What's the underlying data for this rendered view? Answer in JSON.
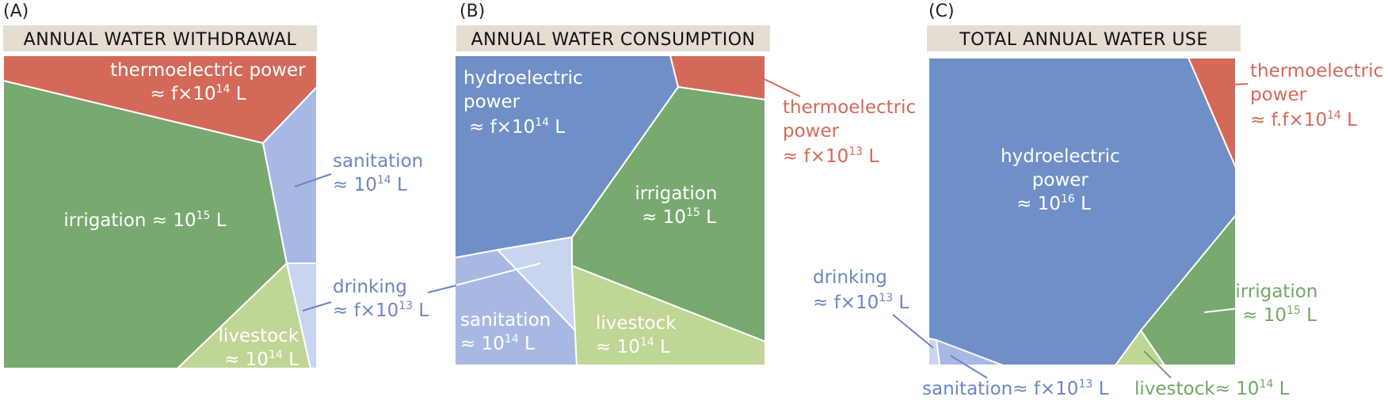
{
  "colors": {
    "thermoelectric": "#d4695a",
    "irrigation": "#78a96f",
    "sanitation": "#a7b9e3",
    "drinking": "#c9d5ef",
    "livestock": "#bfd694",
    "hydroelectric": "#6f8fc7",
    "title_bg": "#e5ddd2",
    "label_blue": "#6b86c4",
    "label_red": "#d4695a",
    "label_green": "#72a765"
  },
  "panels": [
    {
      "letter": "(A)",
      "title": "ANNUAL WATER WITHDRAWAL",
      "labels": {
        "thermo_line1": "thermoelectric power",
        "thermo_line2_pre": "≈ f×10",
        "thermo_line2_exp": "14",
        "thermo_line2_post": " L",
        "irrigation_pre": "irrigation ≈ 10",
        "irrigation_exp": "15",
        "irrigation_post": " L",
        "sanitation_line1": "sanitation",
        "sanitation_line2_pre": "≈ 10",
        "sanitation_line2_exp": "14",
        "sanitation_line2_post": " L",
        "drinking_line1": "drinking",
        "drinking_line2_pre": "≈ f×10",
        "drinking_line2_exp": "13",
        "drinking_line2_post": " L",
        "livestock_line1": "livestock",
        "livestock_line2_pre": "≈ 10",
        "livestock_line2_exp": "14",
        "livestock_line2_post": " L"
      }
    },
    {
      "letter": "(B)",
      "title": "ANNUAL WATER CONSUMPTION",
      "labels": {
        "hydro_line1": "hydroelectric",
        "hydro_line2": "power",
        "hydro_line3_pre": "≈  f×10",
        "hydro_line3_exp": "14",
        "hydro_line3_post": " L",
        "thermo_line1": "thermoelectric",
        "thermo_line2": "power",
        "thermo_line3_pre": "≈ f×10",
        "thermo_line3_exp": "13",
        "thermo_line3_post": " L",
        "irrigation_line1": "irrigation",
        "irrigation_line2_pre": "≈ 10",
        "irrigation_line2_exp": "15",
        "irrigation_line2_post": " L",
        "sanitation_line1": "sanitation",
        "sanitation_line2_pre": "≈ 10",
        "sanitation_line2_exp": "14",
        "sanitation_line2_post": " L",
        "livestock_line1": "livestock",
        "livestock_line2_pre": "≈ 10",
        "livestock_line2_exp": "14",
        "livestock_line2_post": " L"
      }
    },
    {
      "letter": "(C)",
      "title": "TOTAL ANNUAL WATER USE",
      "labels": {
        "hydro_line1": "hydroelectric",
        "hydro_line2": "power",
        "hydro_line3_pre": "≈ 10",
        "hydro_line3_exp": "16",
        "hydro_line3_post": " L",
        "thermo_line1": "thermoelectric",
        "thermo_line2": "power",
        "thermo_line3_pre": "≈ f.f×10",
        "thermo_line3_exp": "14",
        "thermo_line3_post": " L",
        "irrigation_line1": "irrigation",
        "irrigation_line2_pre": "≈ 10",
        "irrigation_line2_exp": "15",
        "irrigation_line2_post": " L",
        "drinking_line1": "drinking",
        "drinking_line2_pre": "≈ f×10",
        "drinking_line2_exp": "13",
        "drinking_line2_post": " L",
        "sanitation_pre": "sanitation≈ f×10",
        "sanitation_exp": "13",
        "sanitation_post": " L",
        "livestock_pre": "livestock≈ 10",
        "livestock_exp": "14",
        "livestock_post": " L"
      }
    }
  ]
}
